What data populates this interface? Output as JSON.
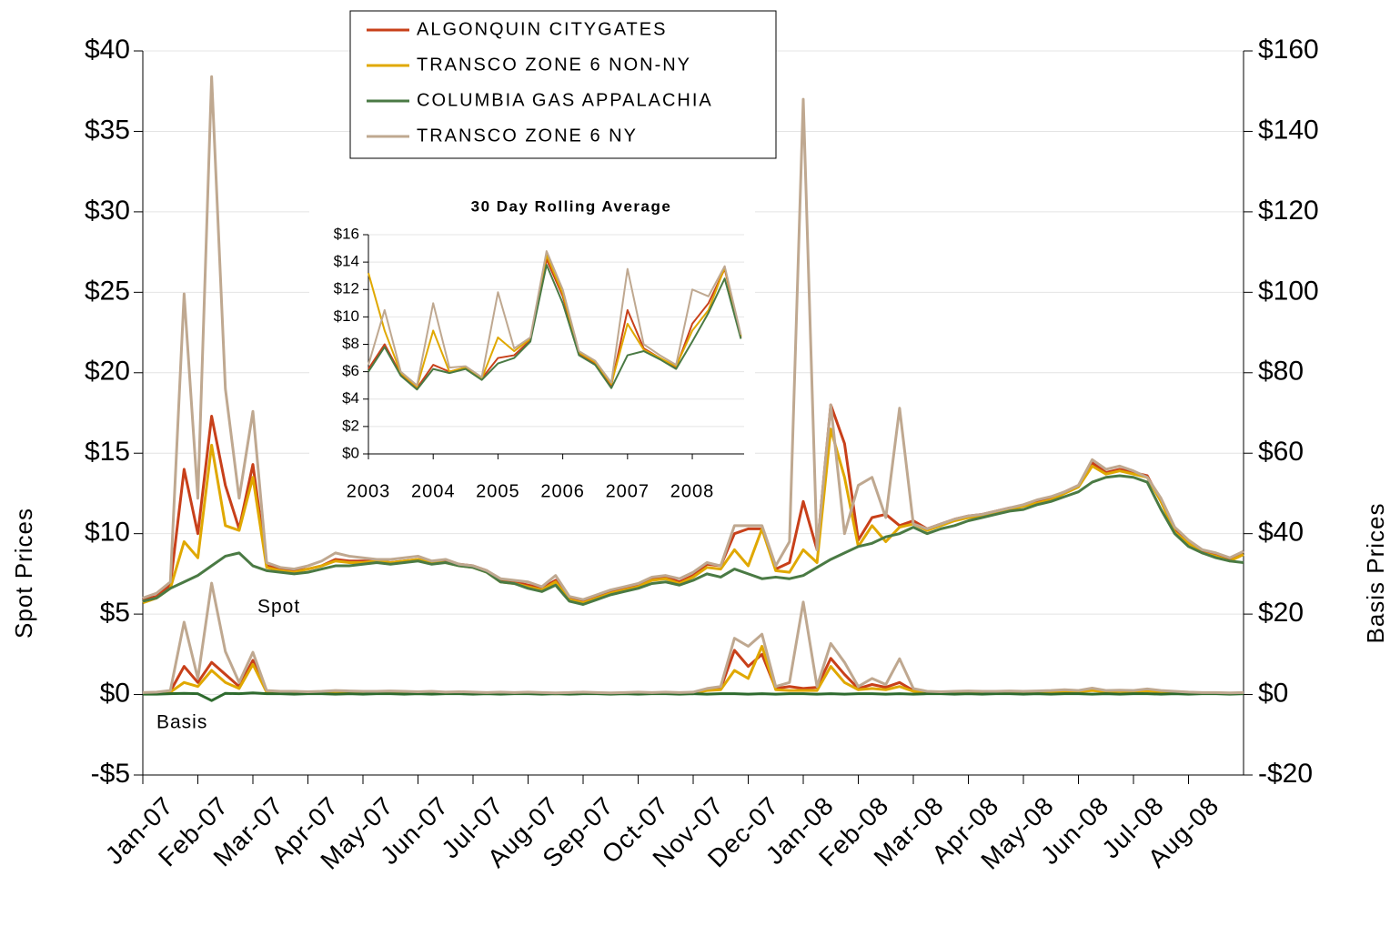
{
  "chart_data": [
    {
      "type": "line",
      "y_label": "Spot Prices",
      "y2_label": "Basis Prices",
      "annotations": [
        "Spot",
        "Basis"
      ],
      "grid": true,
      "xlim": [
        0,
        20
      ],
      "xticks": [
        {
          "value": 0,
          "label": "Jan-07"
        },
        {
          "value": 1,
          "label": "Feb-07"
        },
        {
          "value": 2,
          "label": "Mar-07"
        },
        {
          "value": 3,
          "label": "Apr-07"
        },
        {
          "value": 4,
          "label": "May-07"
        },
        {
          "value": 5,
          "label": "Jun-07"
        },
        {
          "value": 6,
          "label": "Jul-07"
        },
        {
          "value": 7,
          "label": "Aug-07"
        },
        {
          "value": 8,
          "label": "Sep-07"
        },
        {
          "value": 9,
          "label": "Oct-07"
        },
        {
          "value": 10,
          "label": "Nov-07"
        },
        {
          "value": 11,
          "label": "Dec-07"
        },
        {
          "value": 12,
          "label": "Jan-08"
        },
        {
          "value": 13,
          "label": "Feb-08"
        },
        {
          "value": 14,
          "label": "Mar-08"
        },
        {
          "value": 15,
          "label": "Apr-08"
        },
        {
          "value": 16,
          "label": "May-08"
        },
        {
          "value": 17,
          "label": "Jun-08"
        },
        {
          "value": 18,
          "label": "Jul-08"
        },
        {
          "value": 19,
          "label": "Aug-08"
        }
      ],
      "ylim": [
        -5,
        40
      ],
      "yticks": [
        {
          "value": -5,
          "label": "-$5"
        },
        {
          "value": 0,
          "label": "$0"
        },
        {
          "value": 5,
          "label": "$5"
        },
        {
          "value": 10,
          "label": "$10"
        },
        {
          "value": 15,
          "label": "$15"
        },
        {
          "value": 20,
          "label": "$20"
        },
        {
          "value": 25,
          "label": "$25"
        },
        {
          "value": 30,
          "label": "$30"
        },
        {
          "value": 35,
          "label": "$35"
        },
        {
          "value": 40,
          "label": "$40"
        }
      ],
      "y2lim": [
        -20,
        160
      ],
      "y2ticks": [
        {
          "value": -20,
          "label": "-$20"
        },
        {
          "value": 0,
          "label": "$0"
        },
        {
          "value": 20,
          "label": "$20"
        },
        {
          "value": 40,
          "label": "$40"
        },
        {
          "value": 60,
          "label": "$60"
        },
        {
          "value": 80,
          "label": "$80"
        },
        {
          "value": 100,
          "label": "$100"
        },
        {
          "value": 120,
          "label": "$120"
        },
        {
          "value": 140,
          "label": "$140"
        },
        {
          "value": 160,
          "label": "$160"
        }
      ],
      "x": [
        0,
        0.25,
        0.5,
        0.75,
        1,
        1.25,
        1.5,
        1.75,
        2,
        2.25,
        2.5,
        2.75,
        3,
        3.25,
        3.5,
        3.75,
        4,
        4.25,
        4.5,
        4.75,
        5,
        5.25,
        5.5,
        5.75,
        6,
        6.25,
        6.5,
        6.75,
        7,
        7.25,
        7.5,
        7.75,
        8,
        8.25,
        8.5,
        8.75,
        9,
        9.25,
        9.5,
        9.75,
        10,
        10.25,
        10.5,
        10.75,
        11,
        11.25,
        11.5,
        11.75,
        12,
        12.25,
        12.5,
        12.75,
        13,
        13.25,
        13.5,
        13.75,
        14,
        14.25,
        14.5,
        14.75,
        15,
        15.25,
        15.5,
        15.75,
        16,
        16.25,
        16.5,
        16.75,
        17,
        17.25,
        17.5,
        17.75,
        18,
        18.25,
        18.5,
        18.75,
        19,
        19.25,
        19.5,
        19.75,
        20
      ],
      "series": [
        {
          "name": "ALGONQUIN CITYGATES",
          "color": "#c8401a",
          "values": [
            5.9,
            6.1,
            6.8,
            14.0,
            10.0,
            17.3,
            13.0,
            10.3,
            14.3,
            8.0,
            7.8,
            7.7,
            7.8,
            8.0,
            8.4,
            8.3,
            8.3,
            8.3,
            8.2,
            8.3,
            8.4,
            8.2,
            8.3,
            8.1,
            8.0,
            7.7,
            7.1,
            7.0,
            6.8,
            6.6,
            7.1,
            6.0,
            5.8,
            6.1,
            6.4,
            6.6,
            6.8,
            7.2,
            7.3,
            7.0,
            7.4,
            8.1,
            8.0,
            10.0,
            10.3,
            10.3,
            7.8,
            8.2,
            12.0,
            9.0,
            18.0,
            15.6,
            9.6,
            11.0,
            11.2,
            10.5,
            10.8,
            10.3,
            10.6,
            10.9,
            11.1,
            11.2,
            11.4,
            11.6,
            11.7,
            12.0,
            12.2,
            12.6,
            13.0,
            14.4,
            13.8,
            14.0,
            13.8,
            13.6,
            12.0,
            10.2,
            9.5,
            8.9,
            8.7,
            8.4,
            8.9
          ]
        },
        {
          "name": "TRANSCO ZONE 6 NON-NY",
          "color": "#e0a800",
          "values": [
            5.7,
            6.0,
            6.6,
            9.5,
            8.5,
            15.5,
            10.5,
            10.2,
            13.5,
            7.9,
            7.7,
            7.6,
            7.8,
            8.0,
            8.3,
            8.2,
            8.2,
            8.3,
            8.2,
            8.3,
            8.4,
            8.2,
            8.2,
            8.0,
            7.9,
            7.6,
            7.0,
            6.9,
            6.7,
            6.5,
            7.0,
            5.9,
            5.7,
            6.0,
            6.3,
            6.5,
            6.7,
            7.1,
            7.2,
            6.9,
            7.3,
            7.9,
            7.8,
            9.0,
            8.0,
            10.3,
            7.7,
            7.6,
            9.0,
            8.2,
            16.5,
            13.5,
            9.2,
            10.5,
            9.5,
            10.4,
            10.6,
            10.2,
            10.5,
            10.8,
            11.0,
            11.1,
            11.3,
            11.5,
            11.7,
            11.9,
            12.1,
            12.5,
            12.9,
            14.2,
            13.7,
            13.9,
            13.7,
            13.5,
            12.0,
            10.1,
            9.4,
            8.8,
            8.6,
            8.3,
            8.7
          ]
        },
        {
          "name": "COLUMBIA GAS APPALACHIA",
          "color": "#4a7a44",
          "values": [
            5.8,
            6.0,
            6.6,
            7.0,
            7.4,
            8.0,
            8.6,
            8.8,
            8.0,
            7.7,
            7.6,
            7.5,
            7.6,
            7.8,
            8.0,
            8.0,
            8.1,
            8.2,
            8.1,
            8.2,
            8.3,
            8.1,
            8.2,
            8.0,
            7.9,
            7.6,
            7.0,
            6.9,
            6.6,
            6.4,
            6.8,
            5.8,
            5.6,
            5.9,
            6.2,
            6.4,
            6.6,
            6.9,
            7.0,
            6.8,
            7.1,
            7.5,
            7.3,
            7.8,
            7.5,
            7.2,
            7.3,
            7.2,
            7.4,
            7.9,
            8.4,
            8.8,
            9.2,
            9.4,
            9.8,
            10.0,
            10.4,
            10.0,
            10.3,
            10.5,
            10.8,
            11.0,
            11.2,
            11.4,
            11.5,
            11.8,
            12.0,
            12.3,
            12.6,
            13.2,
            13.5,
            13.6,
            13.5,
            13.2,
            11.5,
            10.0,
            9.2,
            8.8,
            8.5,
            8.3,
            8.2
          ]
        },
        {
          "name": "TRANSCO ZONE 6 NY",
          "color": "#bfa890",
          "values": [
            6.0,
            6.3,
            7.0,
            24.9,
            12.2,
            38.4,
            19.0,
            12.2,
            17.6,
            8.2,
            7.9,
            7.8,
            8.0,
            8.3,
            8.8,
            8.6,
            8.5,
            8.4,
            8.4,
            8.5,
            8.6,
            8.3,
            8.4,
            8.1,
            8.0,
            7.7,
            7.2,
            7.1,
            7.0,
            6.7,
            7.4,
            6.1,
            5.9,
            6.2,
            6.5,
            6.7,
            6.9,
            7.3,
            7.4,
            7.2,
            7.6,
            8.2,
            8.0,
            10.5,
            10.5,
            10.5,
            8.0,
            9.5,
            37.0,
            9.0,
            18.0,
            10.0,
            13.0,
            13.5,
            11.0,
            17.8,
            10.6,
            10.3,
            10.6,
            10.9,
            11.1,
            11.2,
            11.4,
            11.6,
            11.8,
            12.1,
            12.3,
            12.6,
            13.0,
            14.6,
            14.0,
            14.2,
            13.9,
            13.5,
            12.2,
            10.4,
            9.6,
            9.0,
            8.8,
            8.5,
            8.9
          ]
        },
        {
          "axis": "y2",
          "color": "#c8401a",
          "values": [
            0.3,
            0.4,
            0.8,
            7.0,
            3.0,
            8.0,
            5.0,
            2.0,
            8.5,
            0.8,
            0.6,
            0.6,
            0.5,
            0.6,
            0.7,
            0.6,
            0.6,
            0.6,
            0.7,
            0.6,
            0.5,
            0.6,
            0.5,
            0.5,
            0.5,
            0.4,
            0.5,
            0.4,
            0.5,
            0.4,
            0.3,
            0.4,
            0.5,
            0.4,
            0.3,
            0.4,
            0.5,
            0.4,
            0.5,
            0.4,
            0.5,
            1.2,
            1.5,
            11.0,
            7.0,
            10.0,
            1.5,
            2.0,
            1.5,
            1.8,
            9.0,
            5.0,
            1.5,
            2.5,
            1.8,
            3.0,
            1.0,
            0.6,
            0.5,
            0.6,
            0.7,
            0.6,
            0.6,
            0.7,
            0.6,
            0.7,
            0.8,
            0.9,
            0.8,
            1.2,
            0.8,
            0.9,
            0.8,
            1.0,
            0.8,
            0.6,
            0.5,
            0.4,
            0.4,
            0.3,
            0.4
          ]
        },
        {
          "axis": "y2",
          "color": "#e0a800",
          "values": [
            0.2,
            0.3,
            0.6,
            3.0,
            2.0,
            6.0,
            3.0,
            1.5,
            7.5,
            0.6,
            0.5,
            0.5,
            0.4,
            0.5,
            0.6,
            0.5,
            0.5,
            0.5,
            0.6,
            0.5,
            0.4,
            0.5,
            0.4,
            0.4,
            0.4,
            0.3,
            0.4,
            0.3,
            0.4,
            0.3,
            0.2,
            0.3,
            0.4,
            0.3,
            0.2,
            0.3,
            0.4,
            0.3,
            0.4,
            0.3,
            0.4,
            1.0,
            1.2,
            6.0,
            4.0,
            12.0,
            1.2,
            1.0,
            1.0,
            1.0,
            7.0,
            3.0,
            1.2,
            1.5,
            1.2,
            2.0,
            0.8,
            0.5,
            0.4,
            0.5,
            0.6,
            0.5,
            0.5,
            0.6,
            0.5,
            0.6,
            0.7,
            0.8,
            0.7,
            1.0,
            0.7,
            0.8,
            0.7,
            0.9,
            0.7,
            0.5,
            0.4,
            0.3,
            0.3,
            0.2,
            0.3
          ]
        },
        {
          "axis": "y2",
          "color": "#2e6b2e",
          "values": [
            0.1,
            0.1,
            0.2,
            0.3,
            0.2,
            -1.5,
            0.3,
            0.2,
            0.4,
            0.2,
            0.2,
            0.1,
            0.2,
            0.2,
            0.1,
            0.2,
            0.1,
            0.2,
            0.2,
            0.1,
            0.2,
            0.1,
            0.2,
            0.2,
            0.1,
            0.2,
            0.1,
            0.2,
            0.2,
            0.1,
            0.2,
            0.1,
            0.2,
            0.2,
            0.1,
            0.2,
            0.1,
            0.2,
            0.2,
            0.1,
            0.2,
            0.1,
            0.2,
            0.2,
            0.1,
            0.2,
            0.1,
            0.2,
            0.2,
            0.1,
            0.2,
            0.1,
            0.2,
            0.2,
            0.1,
            0.2,
            0.1,
            0.2,
            0.2,
            0.1,
            0.2,
            0.1,
            0.2,
            0.2,
            0.1,
            0.2,
            0.1,
            0.2,
            0.2,
            0.1,
            0.2,
            0.1,
            0.2,
            0.2,
            0.1,
            0.2,
            0.1,
            0.2,
            0.2,
            0.1,
            0.2
          ]
        },
        {
          "axis": "y2",
          "color": "#bfa890",
          "values": [
            0.5,
            0.6,
            1.0,
            18.0,
            4.0,
            27.7,
            10.7,
            3.0,
            10.5,
            1.0,
            0.8,
            0.8,
            0.7,
            0.8,
            1.0,
            0.9,
            0.8,
            0.8,
            0.9,
            0.8,
            0.7,
            0.8,
            0.6,
            0.7,
            0.6,
            0.5,
            0.6,
            0.5,
            0.6,
            0.5,
            0.4,
            0.5,
            0.6,
            0.5,
            0.4,
            0.5,
            0.6,
            0.5,
            0.6,
            0.5,
            0.6,
            1.5,
            2.0,
            14.0,
            12.0,
            15.0,
            2.0,
            3.0,
            23.0,
            2.0,
            12.7,
            8.0,
            2.0,
            4.0,
            2.5,
            8.9,
            1.5,
            0.8,
            0.7,
            0.8,
            0.9,
            0.8,
            0.8,
            0.9,
            0.8,
            0.9,
            1.0,
            1.2,
            1.0,
            1.6,
            1.0,
            1.1,
            1.0,
            1.4,
            1.0,
            0.8,
            0.6,
            0.5,
            0.5,
            0.4,
            0.5
          ]
        }
      ]
    },
    {
      "type": "line",
      "title": "30 Day Rolling Average",
      "grid": true,
      "xlim": [
        2003,
        2008.8
      ],
      "xticks": [
        2003,
        2004,
        2005,
        2006,
        2007,
        2008
      ],
      "ylim": [
        0,
        16
      ],
      "yticks": [
        {
          "value": 0,
          "label": "$0"
        },
        {
          "value": 2,
          "label": "$2"
        },
        {
          "value": 4,
          "label": "$4"
        },
        {
          "value": 6,
          "label": "$6"
        },
        {
          "value": 8,
          "label": "$8"
        },
        {
          "value": 10,
          "label": "$10"
        },
        {
          "value": 12,
          "label": "$12"
        },
        {
          "value": 14,
          "label": "$14"
        },
        {
          "value": 16,
          "label": "$16"
        }
      ],
      "x": [
        2003,
        2003.25,
        2003.5,
        2003.75,
        2004,
        2004.25,
        2004.5,
        2004.75,
        2005,
        2005.25,
        2005.5,
        2005.75,
        2006,
        2006.25,
        2006.5,
        2006.75,
        2007,
        2007.25,
        2007.5,
        2007.75,
        2008,
        2008.25,
        2008.5,
        2008.75
      ],
      "series": [
        {
          "color": "#c8401a",
          "values": [
            6.2,
            8.0,
            5.8,
            4.8,
            6.5,
            6.0,
            6.3,
            5.5,
            7.0,
            7.2,
            8.3,
            14.2,
            11.5,
            7.3,
            6.6,
            5.0,
            10.5,
            7.7,
            7.0,
            6.3,
            9.5,
            11.0,
            13.5,
            8.5
          ]
        },
        {
          "color": "#e0a800",
          "values": [
            13.2,
            9.0,
            5.9,
            4.9,
            9.0,
            6.0,
            6.3,
            5.5,
            8.5,
            7.5,
            8.4,
            14.5,
            11.7,
            7.4,
            6.7,
            5.1,
            9.5,
            7.6,
            7.0,
            6.4,
            9.0,
            10.5,
            13.6,
            8.6
          ]
        },
        {
          "color": "#4a7a44",
          "values": [
            6.0,
            7.8,
            5.7,
            4.7,
            6.2,
            5.9,
            6.2,
            5.4,
            6.6,
            7.0,
            8.2,
            13.8,
            11.0,
            7.2,
            6.5,
            4.8,
            7.2,
            7.5,
            6.9,
            6.2,
            8.2,
            10.3,
            12.8,
            8.4
          ]
        },
        {
          "color": "#bfa890",
          "values": [
            6.5,
            10.5,
            6.0,
            5.0,
            11.0,
            6.3,
            6.4,
            5.6,
            11.8,
            7.7,
            8.5,
            14.8,
            12.0,
            7.5,
            6.8,
            5.2,
            13.5,
            8.0,
            7.2,
            6.5,
            12.0,
            11.5,
            13.7,
            8.7
          ]
        }
      ]
    }
  ]
}
